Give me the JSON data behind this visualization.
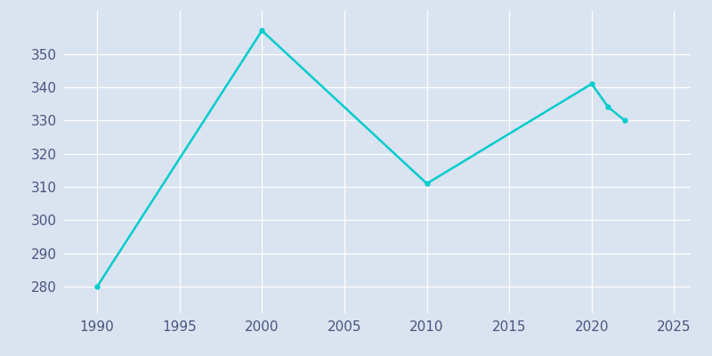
{
  "years": [
    1990,
    2000,
    2010,
    2020,
    2021,
    2022
  ],
  "population": [
    280,
    357,
    311,
    341,
    334,
    330
  ],
  "line_color": "#00CCCC",
  "marker": "o",
  "marker_size": 3.5,
  "bg_color": "#dae3f0",
  "plot_bg_color": "#dae3f0",
  "grid_color": "#ffffff",
  "xlim": [
    1988,
    2026
  ],
  "ylim": [
    272,
    363
  ],
  "xticks": [
    1990,
    1995,
    2000,
    2005,
    2010,
    2015,
    2020,
    2025
  ],
  "yticks": [
    280,
    290,
    300,
    310,
    320,
    330,
    340,
    350
  ],
  "tick_color": "#4a5580",
  "label_fontsize": 11
}
